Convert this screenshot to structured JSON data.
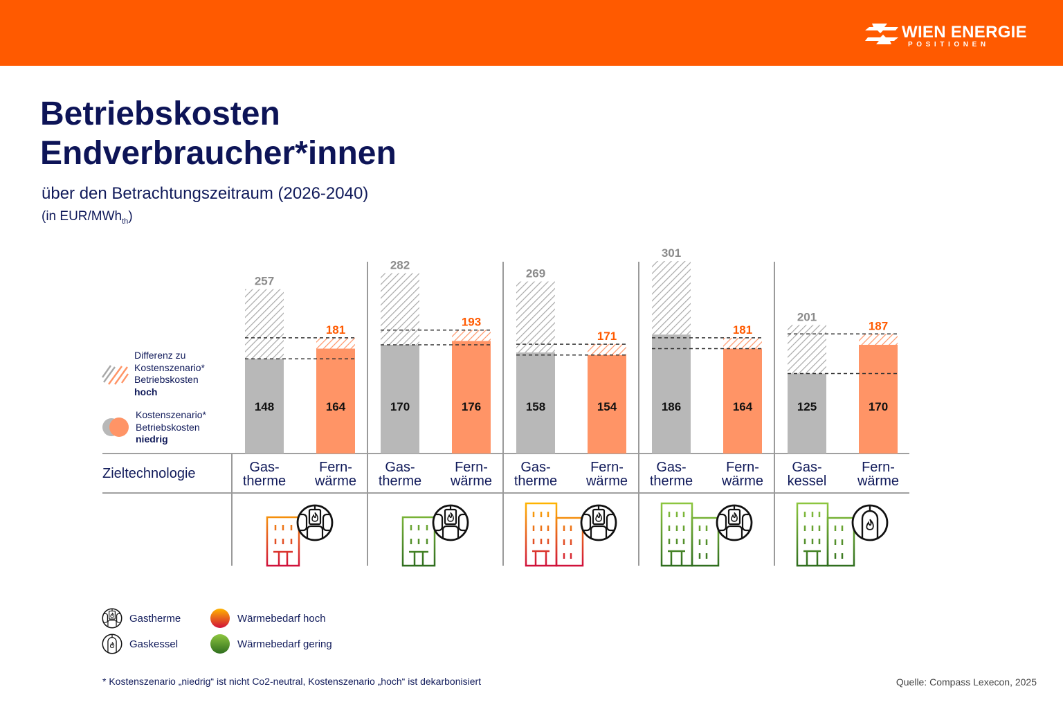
{
  "header": {
    "brand": "WIEN ENERGIE",
    "sub": "POSITIONEN",
    "logo_icon": "wien-energie-logo-icon"
  },
  "title": {
    "line1": "Betriebskosten",
    "line2": "Endverbraucher*innen"
  },
  "subtitle": "über den Betrachtungszeitraum (2026-2040)",
  "unit": {
    "prefix": "(in EUR/MWh",
    "sub": "th",
    "suffix": ")"
  },
  "legend_chart": {
    "hoch": {
      "line1": "Differenz zu",
      "line2": "Kostenszenario*",
      "line3": "Betriebskosten",
      "bold": "hoch"
    },
    "niedrig": {
      "line1": "Kostenszenario*",
      "line2": "Betriebskosten",
      "bold": "niedrig"
    }
  },
  "table": {
    "row_label": "Zieltechnologie"
  },
  "legend_bottom": {
    "gastherme": "Gastherme",
    "gaskessel": "Gaskessel",
    "heat_high": "Wärmebedarf hoch",
    "heat_low": "Wärmebedarf gering"
  },
  "footnote": "* Kostenszenario „niedrig“ ist nicht Co2-neutral, Kostenszenario „hoch“ ist dekarbonisiert",
  "source": "Quelle: Compass Lexecon, 2025",
  "colors": {
    "brand_orange": "#ff5a00",
    "bar_gray": "#b8b8b8",
    "bar_orange": "#ff9466",
    "label_gray": "#8a8a8a",
    "label_orange": "#ff5a00",
    "navy": "#101a5a",
    "heat_high_top": "#ffb400",
    "heat_high_bottom": "#d0103a",
    "heat_low_top": "#8dc63f",
    "heat_low_bottom": "#2f6e1e"
  },
  "chart_data": {
    "type": "bar",
    "title": "Betriebskosten Endverbraucher*innen",
    "subtitle": "über den Betrachtungszeitraum (2026-2040)",
    "ylabel": "EUR/MWh_th",
    "ylim": [
      0,
      310
    ],
    "grid": false,
    "legend": [
      "Kostenszenario* Betriebskosten niedrig",
      "Differenz zu Kostenszenario* Betriebskosten hoch"
    ],
    "legend_position": "left",
    "series": [
      {
        "name": "Kostenszenario niedrig",
        "values": [
          148,
          164,
          170,
          176,
          158,
          154,
          186,
          164,
          125,
          170
        ]
      },
      {
        "name": "Kostenszenario hoch",
        "values": [
          257,
          181,
          282,
          193,
          269,
          171,
          301,
          181,
          201,
          187
        ]
      }
    ],
    "groups": [
      {
        "heat_demand": "hoch",
        "building": "single",
        "boiler": "gastherme",
        "bars": [
          {
            "tech": "gas",
            "line1": "Gas-",
            "line2": "therme",
            "low": 148,
            "high": 257
          },
          {
            "tech": "fern",
            "line1": "Fern-",
            "line2": "wärme",
            "low": 164,
            "high": 181
          }
        ]
      },
      {
        "heat_demand": "gering",
        "building": "single",
        "boiler": "gastherme",
        "bars": [
          {
            "tech": "gas",
            "line1": "Gas-",
            "line2": "therme",
            "low": 170,
            "high": 282
          },
          {
            "tech": "fern",
            "line1": "Fern-",
            "line2": "wärme",
            "low": 176,
            "high": 193
          }
        ]
      },
      {
        "heat_demand": "hoch",
        "building": "double",
        "boiler": "gastherme",
        "bars": [
          {
            "tech": "gas",
            "line1": "Gas-",
            "line2": "therme",
            "low": 158,
            "high": 269
          },
          {
            "tech": "fern",
            "line1": "Fern-",
            "line2": "wärme",
            "low": 154,
            "high": 171
          }
        ]
      },
      {
        "heat_demand": "gering",
        "building": "double",
        "boiler": "gastherme",
        "bars": [
          {
            "tech": "gas",
            "line1": "Gas-",
            "line2": "therme",
            "low": 186,
            "high": 301
          },
          {
            "tech": "fern",
            "line1": "Fern-",
            "line2": "wärme",
            "low": 164,
            "high": 181
          }
        ]
      },
      {
        "heat_demand": "gering",
        "building": "double",
        "boiler": "gaskessel",
        "bars": [
          {
            "tech": "gas",
            "line1": "Gas-",
            "line2": "kessel",
            "low": 125,
            "high": 201
          },
          {
            "tech": "fern",
            "line1": "Fern-",
            "line2": "wärme",
            "low": 170,
            "high": 187
          }
        ]
      }
    ]
  }
}
